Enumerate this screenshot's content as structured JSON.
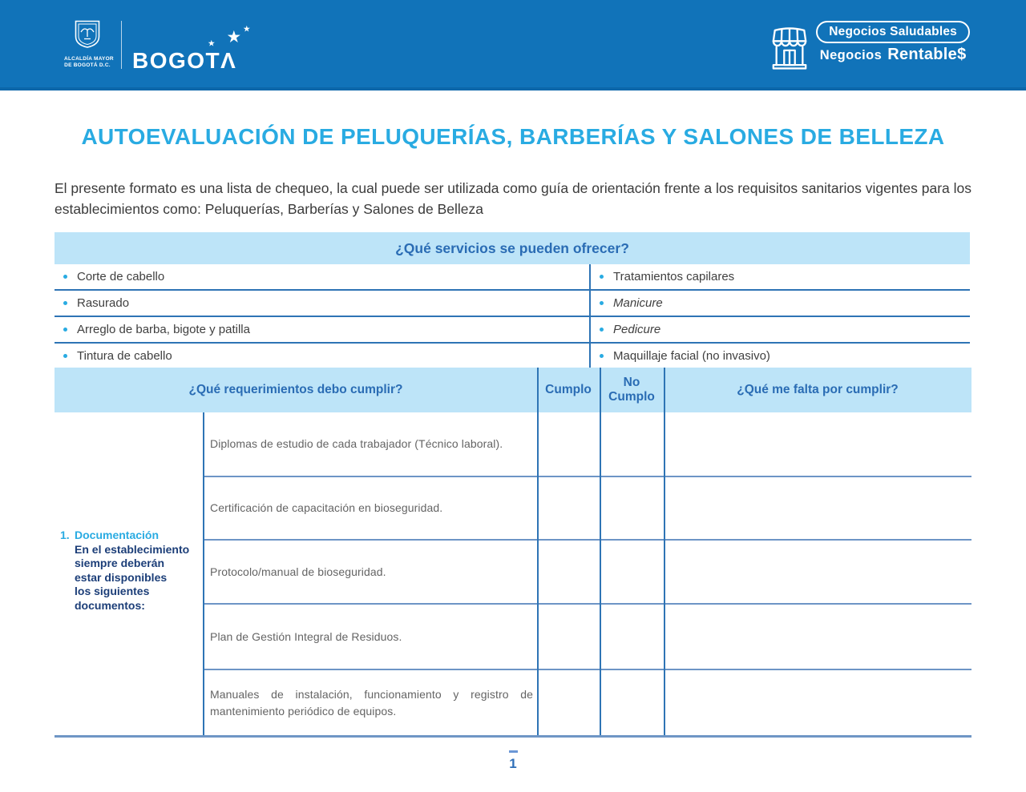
{
  "header": {
    "bogota_logo": {
      "caption_line1": "ALCALDÍA MAYOR",
      "caption_line2": "DE BOGOTÁ D.C.",
      "wordmark_text": "BOGOT",
      "wordmark_peak": "Λ",
      "star_glyph": "★"
    },
    "program_logo": {
      "line1": "Negocios Saludables",
      "line2_word1": "Negocios",
      "line2_word2": "Rentable$"
    }
  },
  "title": "AUTOEVALUACIÓN DE PELUQUERÍAS, BARBERÍAS Y SALONES DE BELLEZA",
  "intro": "El presente formato es una lista de chequeo, la cual puede ser utilizada como guía de orientación frente a los requisitos sanitarios vigentes para los establecimientos como: Peluquerías, Barberías y Salones de Belleza",
  "services": {
    "header": "¿Qué servicios se pueden ofrecer?",
    "left": [
      {
        "label": "Corte de cabello",
        "italic": false
      },
      {
        "label": "Rasurado",
        "italic": false
      },
      {
        "label": "Arreglo de barba, bigote y patilla",
        "italic": false
      },
      {
        "label": "Tintura de cabello",
        "italic": false
      }
    ],
    "right": [
      {
        "label": "Tratamientos capilares",
        "italic": false
      },
      {
        "label": "Manicure",
        "italic": true
      },
      {
        "label": "Pedicure",
        "italic": true
      },
      {
        "label": "Maquillaje facial (no invasivo)",
        "italic": false
      }
    ]
  },
  "requirements": {
    "columns": {
      "requirement": "¿Qué requerimientos debo cumplir?",
      "comply": "Cumplo",
      "not_comply": "No Cumplo",
      "missing": "¿Qué me falta por cumplir?"
    },
    "category": {
      "number": "1.",
      "title": "Documentación",
      "description_lines": [
        "En el establecimiento",
        "siempre deberán",
        "estar disponibles",
        "los siguientes",
        "documentos:"
      ]
    },
    "items": [
      "Diplomas de estudio de cada trabajador (Técnico laboral).",
      "Certificación de capacitación en bioseguridad.",
      "Protocolo/manual de bioseguridad.",
      "Plan de Gestión Integral de Residuos.",
      "Manuales de instalación, funcionamiento y registro de mantenimiento periódico de equipos."
    ]
  },
  "footer": {
    "page_number": "1"
  },
  "colors": {
    "header_bar": "#1173b9",
    "accent_cyan": "#29abe2",
    "band_background": "#bde4f8",
    "band_text": "#2a6cb4",
    "grid_line": "#2e74b5",
    "body_line": "#6d95c6",
    "category_text": "#1c3e78",
    "item_text": "#646464",
    "page_number": "#2f6fb8"
  }
}
